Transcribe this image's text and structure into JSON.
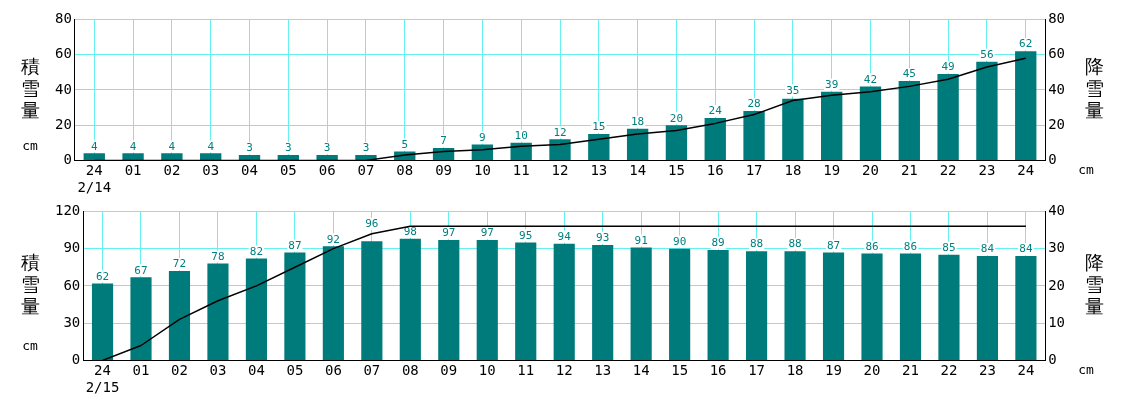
{
  "chart_data": [
    {
      "type": "bar",
      "ylabel": "積雪量",
      "y2label": "降雪量",
      "annotations": [
        "cm",
        "cm"
      ],
      "categories": [
        "24\n2/14",
        "01",
        "02",
        "03",
        "04",
        "05",
        "06",
        "07",
        "08",
        "09",
        "10",
        "11",
        "12",
        "13",
        "14",
        "15",
        "16",
        "17",
        "18",
        "19",
        "20",
        "21",
        "22",
        "23",
        "24"
      ],
      "series": [
        {
          "color": "#007b7b",
          "values": [
            4,
            4,
            4,
            4,
            3,
            3,
            3,
            3,
            5,
            7,
            9,
            10,
            12,
            15,
            18,
            20,
            24,
            28,
            35,
            39,
            42,
            45,
            49,
            56,
            62
          ],
          "value_labels": [
            "4",
            "4",
            "4",
            "4",
            "3",
            "3",
            "3",
            "3",
            "5",
            "7",
            "9",
            "10",
            "12",
            "15",
            "18",
            "20",
            "24",
            "28",
            "35",
            "39",
            "42",
            "45",
            "49",
            "56",
            "62"
          ]
        },
        {
          "type": "line",
          "axis": "y2",
          "color": "#000000",
          "values": [
            0,
            0,
            0,
            0,
            0,
            0,
            0,
            0,
            3,
            5,
            6,
            8,
            9,
            12,
            15,
            17,
            21,
            26,
            34,
            37,
            39,
            42,
            46,
            53,
            58
          ]
        }
      ],
      "ylim": [
        0,
        80
      ],
      "yticks": [
        0,
        20,
        40,
        60,
        80
      ],
      "y2lim": [
        0,
        80
      ],
      "y2ticks": [
        0,
        20,
        40,
        60,
        80
      ],
      "grid": true,
      "marker": "none",
      "line_style": "solid"
    },
    {
      "type": "bar",
      "ylabel": "積雪量",
      "y2label": "降雪量",
      "annotations": [
        "cm",
        "cm"
      ],
      "categories": [
        "24\n2/15",
        "01",
        "02",
        "03",
        "04",
        "05",
        "06",
        "07",
        "08",
        "09",
        "10",
        "11",
        "12",
        "13",
        "14",
        "15",
        "16",
        "17",
        "18",
        "19",
        "20",
        "21",
        "22",
        "23",
        "24"
      ],
      "series": [
        {
          "color": "#007b7b",
          "values": [
            62,
            67,
            72,
            78,
            82,
            87,
            92,
            96,
            98,
            97,
            97,
            95,
            94,
            93,
            91,
            90,
            89,
            88,
            88,
            87,
            86,
            86,
            85,
            84,
            84
          ],
          "value_labels": [
            "62",
            "67",
            "72",
            "78",
            "82",
            "87",
            "92",
            "96",
            "98",
            "97",
            "97",
            "95",
            "94",
            "93",
            "91",
            "90",
            "89",
            "88",
            "88",
            "87",
            "86",
            "86",
            "85",
            "84",
            "84"
          ]
        },
        {
          "type": "line",
          "axis": "y2",
          "color": "#000000",
          "values": [
            0,
            4,
            11,
            16,
            20,
            25,
            30,
            34,
            36,
            36,
            36,
            36,
            36,
            36,
            36,
            36,
            36,
            36,
            36,
            36,
            36,
            36,
            36,
            36,
            36
          ]
        }
      ],
      "ylim": [
        0,
        120
      ],
      "yticks": [
        0,
        30,
        60,
        90,
        120
      ],
      "y2lim": [
        0,
        40
      ],
      "y2ticks": [
        0,
        10,
        20,
        30,
        40
      ],
      "grid": true,
      "marker": "none",
      "line_style": "solid"
    }
  ]
}
